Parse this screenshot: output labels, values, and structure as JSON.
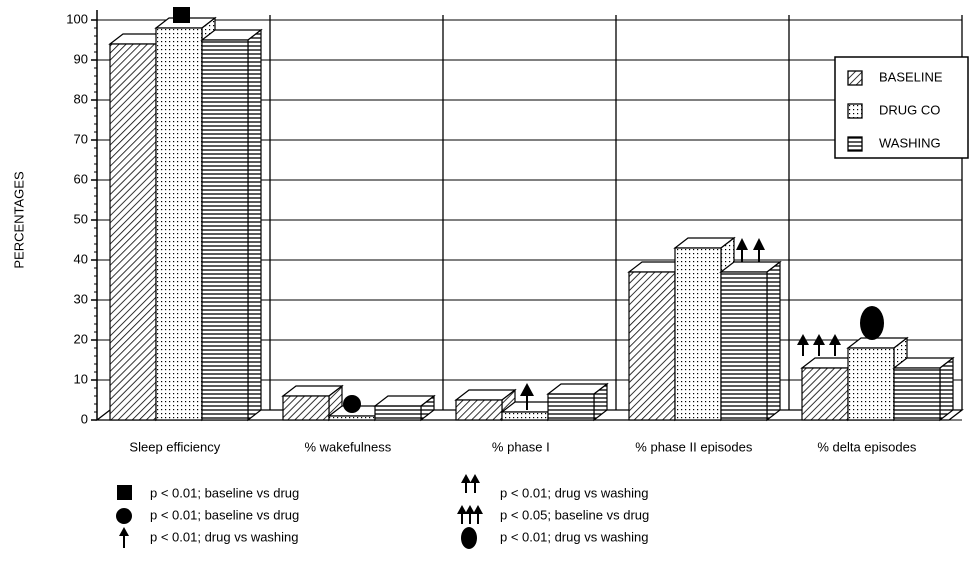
{
  "chart_data": {
    "type": "bar3d",
    "ylabel": "PERCENTAGES",
    "categories": [
      "Sleep efficiency",
      "% wakefulness",
      "% phase I",
      "% phase II episodes",
      "% delta episodes"
    ],
    "series": [
      {
        "name": "BASELINE",
        "color": "#000000",
        "pattern": "diagonal",
        "values": [
          94,
          6,
          5,
          37,
          13
        ]
      },
      {
        "name": "DRUG CO",
        "color": "#000000",
        "pattern": "dots",
        "values": [
          98,
          1,
          2,
          43,
          18
        ]
      },
      {
        "name": "WASHING",
        "color": "#000000",
        "pattern": "horizontal",
        "values": [
          95,
          3.5,
          6.5,
          37,
          13
        ]
      }
    ],
    "ylim": [
      0,
      100
    ],
    "yticks": [
      0,
      10,
      20,
      30,
      40,
      50,
      60,
      70,
      80,
      90,
      100
    ],
    "grid": true,
    "legend": "top-right",
    "notes": [
      "p < 0.01; baseline vs drug",
      "p < 0.01; baseline vs drug",
      "p < 0.01; drug vs washing",
      "p < 0.01; drug vs washing",
      "p < 0.05; baseline vs drug",
      "p < 0.01; drug vs washing"
    ]
  }
}
